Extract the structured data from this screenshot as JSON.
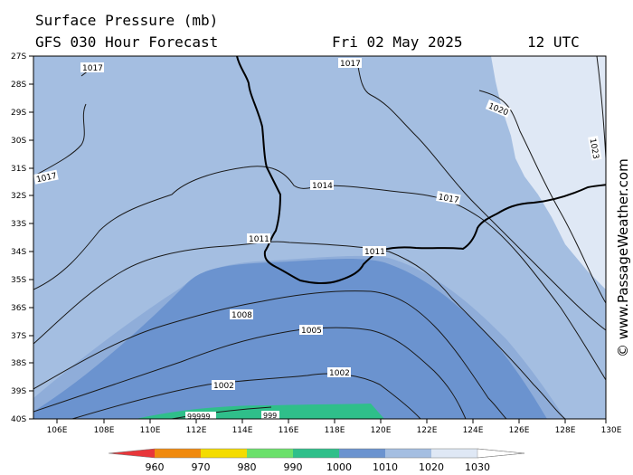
{
  "header": {
    "title": "Surface Pressure (mb)",
    "model": "GFS 030 Hour Forecast",
    "date": "Fri 02 May 2025",
    "time": "12 UTC"
  },
  "watermark": "© www.PassageWeather.com",
  "axes": {
    "lat_labels": [
      "27S",
      "28S",
      "29S",
      "30S",
      "31S",
      "32S",
      "33S",
      "34S",
      "35S",
      "36S",
      "37S",
      "38S",
      "39S",
      "40S"
    ],
    "lon_labels": [
      "106E",
      "108E",
      "110E",
      "112E",
      "114E",
      "116E",
      "118E",
      "120E",
      "122E",
      "124E",
      "126E",
      "128E",
      "130E"
    ]
  },
  "isobar_labels": [
    {
      "text": "1017",
      "key": "a"
    },
    {
      "text": "1017",
      "key": "b"
    },
    {
      "text": "1020",
      "key": "c"
    },
    {
      "text": "1023",
      "key": "d"
    },
    {
      "text": "1017",
      "key": "e"
    },
    {
      "text": "1014",
      "key": "f"
    },
    {
      "text": "1017",
      "key": "g"
    },
    {
      "text": "1011",
      "key": "h"
    },
    {
      "text": "1011",
      "key": "i"
    },
    {
      "text": "1008",
      "key": "j"
    },
    {
      "text": "1005",
      "key": "k"
    },
    {
      "text": "1002",
      "key": "l"
    },
    {
      "text": "1002",
      "key": "m"
    },
    {
      "text": "99999",
      "key": "n"
    },
    {
      "text": "999",
      "key": "o"
    }
  ],
  "legend": {
    "ticks": [
      "960",
      "970",
      "980",
      "990",
      "1000",
      "1010",
      "1020",
      "1030"
    ],
    "colors": [
      "#e8363a",
      "#f08a0e",
      "#f4dc00",
      "#6be06b",
      "#2fbf8a",
      "#6b93cf",
      "#a4bee1",
      "#dfe8f5",
      "#ffffff"
    ]
  },
  "palette": {
    "band_1010_1020": "#a4bee1",
    "band_1020_1030": "#dfe8f5",
    "band_1000_1010": "#6b93cf",
    "band_990_1000": "#2fbf8a"
  }
}
